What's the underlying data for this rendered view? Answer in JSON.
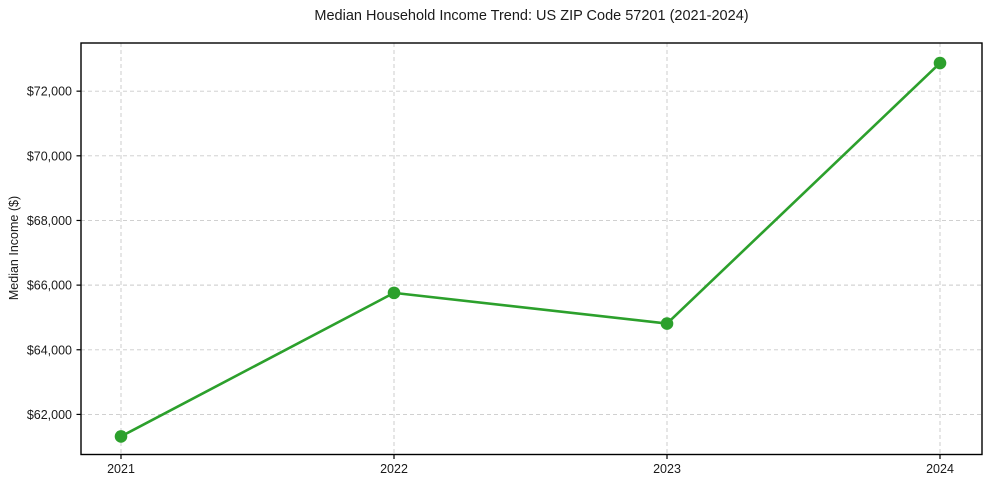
{
  "chart_data": {
    "type": "line",
    "title": "Median Household Income Trend: US ZIP Code 57201 (2021-2024)",
    "xlabel": "",
    "ylabel": "Median Income ($)",
    "x": [
      "2021",
      "2022",
      "2023",
      "2024"
    ],
    "series": [
      {
        "name": "Median Household Income",
        "values": [
          61320,
          65760,
          64810,
          72870
        ],
        "color": "#2ca02c",
        "marker": "circle"
      }
    ],
    "x_tick_labels": [
      "2021",
      "2022",
      "2023",
      "2024"
    ],
    "y_ticks": [
      62000,
      64000,
      66000,
      68000,
      70000,
      72000
    ],
    "y_tick_labels": [
      "$62,000",
      "$64,000",
      "$66,000",
      "$68,000",
      "$70,000",
      "$72,000"
    ],
    "ylim": [
      60760,
      73490
    ],
    "grid": true,
    "grid_style": "dashed",
    "grid_color": "#c9c9c9",
    "spine_color": "#000000",
    "text_color": "#1a1a1a",
    "background": "#ffffff",
    "legend_position": "none"
  }
}
